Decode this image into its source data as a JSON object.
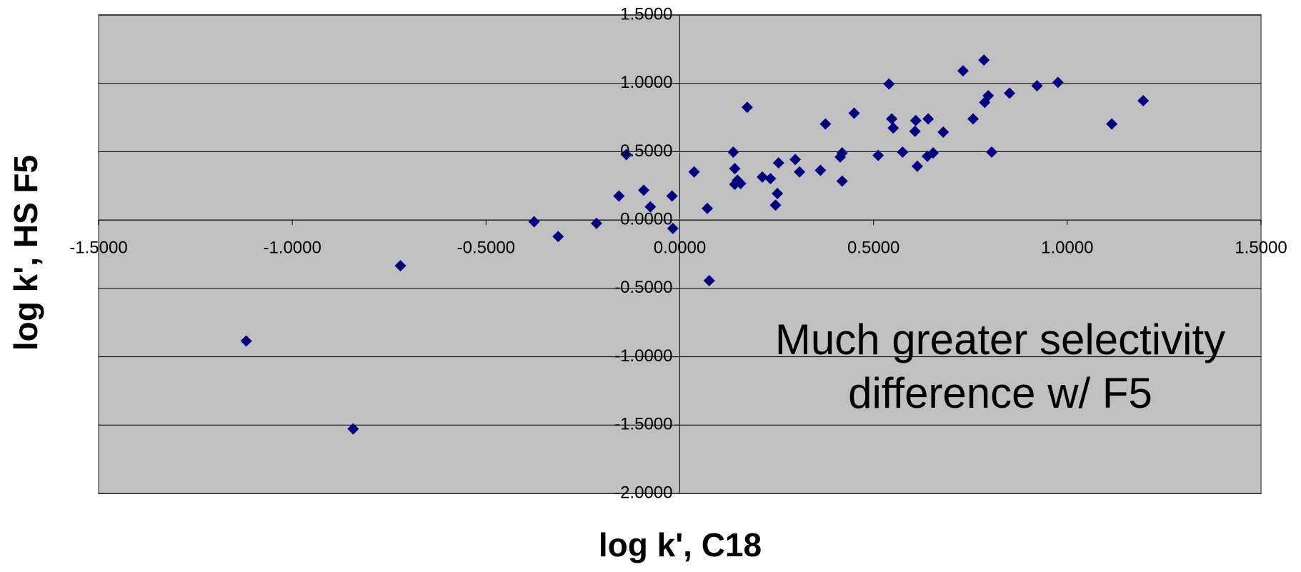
{
  "chart_data": {
    "type": "scatter",
    "xlabel": "log k', C18",
    "ylabel": "log k', HS F5",
    "annotation": [
      "Much greater selectivity",
      "difference w/ F5"
    ],
    "color": "#000080",
    "grid": true,
    "xlim": [
      -1.5,
      1.5
    ],
    "ylim": [
      -2.0,
      1.5
    ],
    "xticks": [
      {
        "value": -1.5,
        "label": "-1.5000"
      },
      {
        "value": -1.0,
        "label": "-1.0000"
      },
      {
        "value": -0.5,
        "label": "-0.5000"
      },
      {
        "value": 0,
        "label": "0.0000"
      },
      {
        "value": 0.5,
        "label": "0.5000"
      },
      {
        "value": 1.0,
        "label": "1.0000"
      },
      {
        "value": 1.5,
        "label": "1.5000"
      }
    ],
    "yticks": [
      {
        "value": -2.0,
        "label": "-2.0000"
      },
      {
        "value": -1.5,
        "label": "-1.5000"
      },
      {
        "value": -1.0,
        "label": "-1.0000"
      },
      {
        "value": -0.5,
        "label": "-0.5000"
      },
      {
        "value": 0,
        "label": "0.0000"
      },
      {
        "value": 0.5,
        "label": "0.5000"
      },
      {
        "value": 1.0,
        "label": "1.0000"
      },
      {
        "value": 1.5,
        "label": "1.5000"
      }
    ],
    "x": [
      -1.119,
      -0.843,
      -0.721,
      -0.376,
      -0.314,
      -0.215,
      -0.157,
      -0.138,
      -0.093,
      -0.076,
      -0.02,
      -0.018,
      0.037,
      0.071,
      0.076,
      0.138,
      0.142,
      0.142,
      0.149,
      0.157,
      0.174,
      0.213,
      0.234,
      0.252,
      0.247,
      0.255,
      0.298,
      0.309,
      0.363,
      0.376,
      0.414,
      0.419,
      0.419,
      0.45,
      0.512,
      0.54,
      0.547,
      0.551,
      0.575,
      0.609,
      0.607,
      0.613,
      0.641,
      0.639,
      0.654,
      0.68,
      0.731,
      0.757,
      0.785,
      0.787,
      0.796,
      0.805,
      0.851,
      0.922,
      0.976,
      1.115,
      1.196
    ],
    "y": [
      -0.885,
      -1.528,
      -0.334,
      -0.012,
      -0.121,
      -0.024,
      0.176,
      0.479,
      0.218,
      0.097,
      0.176,
      -0.061,
      0.352,
      0.085,
      -0.443,
      0.497,
      0.376,
      0.261,
      0.291,
      0.267,
      0.825,
      0.315,
      0.303,
      0.194,
      0.109,
      0.418,
      0.443,
      0.352,
      0.364,
      0.703,
      0.461,
      0.491,
      0.285,
      0.782,
      0.473,
      0.995,
      0.74,
      0.673,
      0.497,
      0.728,
      0.649,
      0.394,
      0.74,
      0.467,
      0.491,
      0.643,
      1.092,
      0.74,
      1.17,
      0.861,
      0.91,
      0.497,
      0.928,
      0.982,
      1.007,
      0.703,
      0.873
    ]
  }
}
